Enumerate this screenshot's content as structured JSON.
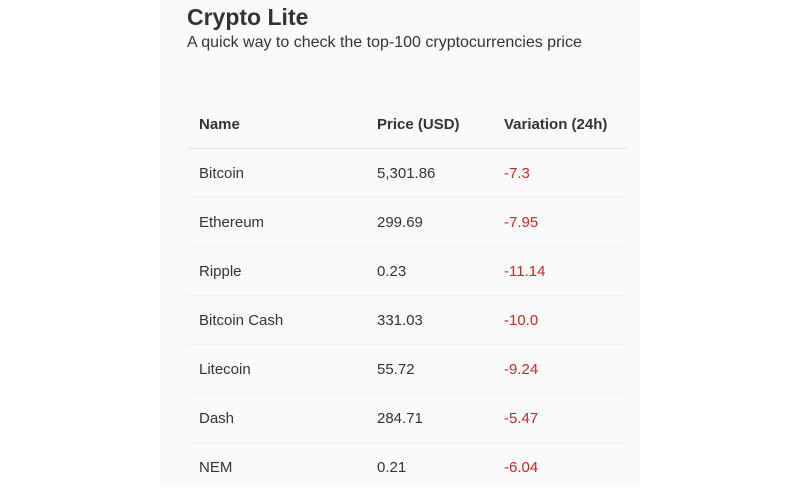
{
  "app": {
    "title": "Crypto Lite",
    "subtitle": "A quick way to check the top-100 cryptocurrencies price"
  },
  "table": {
    "headers": {
      "name": "Name",
      "price": "Price (USD)",
      "variation": "Variation (24h)"
    },
    "rows": [
      {
        "name": "Bitcoin",
        "price": "5,301.86",
        "variation": "-7.3"
      },
      {
        "name": "Ethereum",
        "price": "299.69",
        "variation": "-7.95"
      },
      {
        "name": "Ripple",
        "price": "0.23",
        "variation": "-11.14"
      },
      {
        "name": "Bitcoin Cash",
        "price": "331.03",
        "variation": "-10.0"
      },
      {
        "name": "Litecoin",
        "price": "55.72",
        "variation": "-9.24"
      },
      {
        "name": "Dash",
        "price": "284.71",
        "variation": "-5.47"
      },
      {
        "name": "NEM",
        "price": "0.21",
        "variation": "-6.04"
      }
    ]
  },
  "colors": {
    "negative": "#c62828",
    "text": "#333333",
    "panel_background": "#fafafa"
  }
}
